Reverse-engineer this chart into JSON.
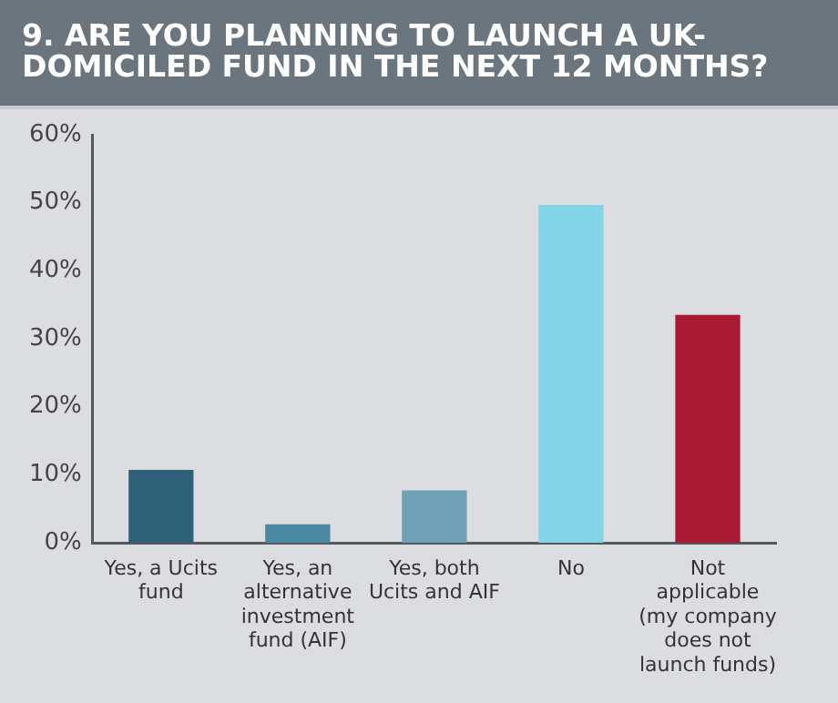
{
  "chart_data": {
    "type": "bar",
    "title": "9. ARE YOU PLANNING TO LAUNCH A UK-DOMICILED FUND IN THE NEXT 12 MONTHS?",
    "categories": [
      "Yes, a Ucits fund",
      "Yes, an alternative investment fund (AIF)",
      "Yes, both Ucits and AIF",
      "No",
      "Not applicable (my company does not launch funds)"
    ],
    "values": [
      10.7,
      2.7,
      7.7,
      49.7,
      33.5
    ],
    "colors": [
      "#2f6178",
      "#4a87a0",
      "#6fa0b5",
      "#82d4e6",
      "#a91b35"
    ],
    "ylim": [
      0,
      60
    ],
    "yticks": [
      {
        "value": 0,
        "label": "0%"
      },
      {
        "value": 10,
        "label": "10%"
      },
      {
        "value": 20,
        "label": "20%"
      },
      {
        "value": 30,
        "label": "30%"
      },
      {
        "value": 40,
        "label": "40%"
      },
      {
        "value": 50,
        "label": "50%"
      },
      {
        "value": 60,
        "label": "60%"
      }
    ],
    "grid": false,
    "legend": false
  }
}
